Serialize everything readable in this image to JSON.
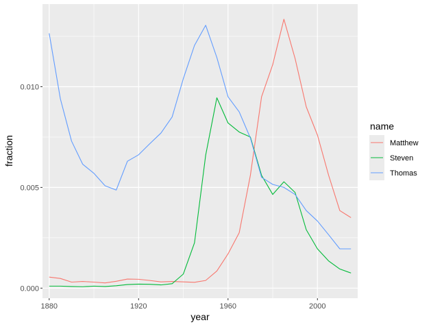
{
  "chart_data": {
    "type": "line",
    "xlabel": "year",
    "ylabel": "fraction",
    "xlim": [
      1877,
      2018
    ],
    "ylim": [
      -0.0005,
      0.0141
    ],
    "x_ticks": [
      1880,
      1920,
      1960,
      2000
    ],
    "x_tick_labels": [
      "1880",
      "1920",
      "1960",
      "2000"
    ],
    "y_ticks": [
      0.0,
      0.005,
      0.01
    ],
    "y_tick_labels": [
      "0.000",
      "0.005",
      "0.010"
    ],
    "x_minor_ticks": [
      1900,
      1940,
      1980
    ],
    "y_minor_ticks": [
      0.0025,
      0.0075,
      0.0125
    ],
    "grid": true,
    "legend_position": "right",
    "legend_title": "name",
    "series": [
      {
        "name": "Matthew",
        "color": "#F8766D",
        "x": [
          1880,
          1885,
          1890,
          1895,
          1900,
          1905,
          1910,
          1915,
          1920,
          1925,
          1930,
          1935,
          1940,
          1945,
          1950,
          1955,
          1960,
          1965,
          1970,
          1975,
          1980,
          1985,
          1990,
          1995,
          2000,
          2005,
          2010,
          2015
        ],
        "y": [
          0.00055,
          0.00048,
          0.0003,
          0.00033,
          0.0003,
          0.00026,
          0.00034,
          0.00045,
          0.00044,
          0.00038,
          0.00031,
          0.00033,
          0.00031,
          0.00029,
          0.00038,
          0.00085,
          0.0017,
          0.00275,
          0.0056,
          0.0095,
          0.0111,
          0.01335,
          0.0114,
          0.009,
          0.0076,
          0.0056,
          0.00385,
          0.0035
        ]
      },
      {
        "name": "Steven",
        "color": "#00BA38",
        "x": [
          1880,
          1885,
          1890,
          1895,
          1900,
          1905,
          1910,
          1915,
          1920,
          1925,
          1930,
          1935,
          1940,
          1945,
          1950,
          1955,
          1960,
          1965,
          1970,
          1975,
          1980,
          1985,
          1990,
          1995,
          2000,
          2005,
          2010,
          2015
        ],
        "y": [
          0.0001,
          0.0001,
          8e-05,
          7e-05,
          0.0001,
          8e-05,
          0.00012,
          0.00018,
          0.0002,
          0.00019,
          0.00016,
          0.00022,
          0.0007,
          0.00225,
          0.0066,
          0.00945,
          0.0082,
          0.00775,
          0.0075,
          0.0056,
          0.00465,
          0.00528,
          0.00475,
          0.0029,
          0.00195,
          0.00135,
          0.00095,
          0.00075
        ]
      },
      {
        "name": "Thomas",
        "color": "#619CFF",
        "x": [
          1880,
          1885,
          1890,
          1895,
          1900,
          1905,
          1910,
          1915,
          1920,
          1925,
          1930,
          1935,
          1940,
          1945,
          1950,
          1955,
          1960,
          1965,
          1970,
          1975,
          1980,
          1985,
          1990,
          1995,
          2000,
          2005,
          2010,
          2015
        ],
        "y": [
          0.01265,
          0.0094,
          0.0073,
          0.00615,
          0.0057,
          0.00508,
          0.00487,
          0.0063,
          0.00662,
          0.00717,
          0.0077,
          0.0085,
          0.0104,
          0.01205,
          0.01305,
          0.01145,
          0.0095,
          0.00875,
          0.00745,
          0.0055,
          0.00515,
          0.005,
          0.00465,
          0.00385,
          0.00333,
          0.00265,
          0.00195,
          0.00195
        ]
      }
    ]
  }
}
